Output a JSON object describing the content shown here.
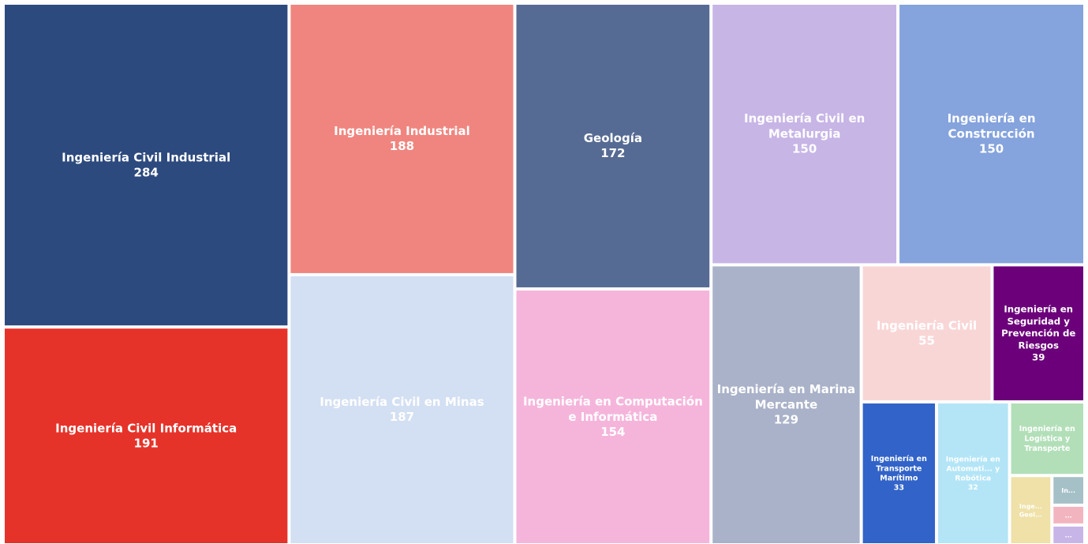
{
  "chart_data": {
    "type": "treemap",
    "labels": [
      "Ingeniería Civil Industrial",
      "Ingeniería Civil Informática",
      "Ingeniería Industrial",
      "Ingeniería Civil en Minas",
      "Geología",
      "Ingeniería en Computación e Informática",
      "Ingeniería Civil en Metalurgia",
      "Ingeniería en Construcción",
      "Ingeniería en Marina Mercante",
      "Ingeniería Civil",
      "Ingeniería en Seguridad y Prevención de Riesgos",
      "Ingeniería en Transporte Marítimo",
      "Ingeniería en Automati... y Robótica",
      "Ingeniería en Logística y Transporte",
      "Inge... Geol...",
      "In...",
      "...",
      "..."
    ],
    "values": [
      284,
      191,
      188,
      187,
      172,
      154,
      150,
      150,
      129,
      55,
      39,
      33,
      32,
      17,
      9,
      3,
      2,
      2
    ],
    "value_labels": [
      "284",
      "191",
      "188",
      "187",
      "172",
      "154",
      "150",
      "150",
      "129",
      "55",
      "39",
      "33",
      "32",
      null,
      null,
      null,
      null,
      null
    ],
    "colors": [
      "#2d4a7e",
      "#e6332a",
      "#f0857f",
      "#d3dff2",
      "#566b93",
      "#f5b5db",
      "#c7b5e6",
      "#85a3dc",
      "#a9b2c8",
      "#f9d6d6",
      "#6b007a",
      "#3263c8",
      "#b3e5f7",
      "#b2dfb8",
      "#efe1a8",
      "#a6c0c8",
      "#f2b5c0",
      "#c8b5e8"
    ]
  }
}
